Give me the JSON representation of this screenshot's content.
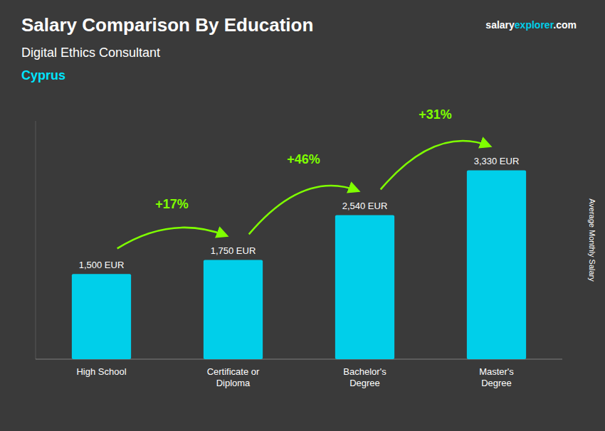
{
  "chart_data": {
    "type": "bar",
    "title": "Salary Comparison By Education",
    "subtitle": "Digital Ethics Consultant",
    "annotations": [
      {
        "text": "Cyprus",
        "color": "#00e5ff"
      }
    ],
    "source": [
      {
        "text": "salary"
      },
      {
        "text": "explorer",
        "color": "#00cfea"
      },
      {
        "text": ".com"
      }
    ],
    "y_label": "Average Monthly Salary",
    "categories": [
      "High School",
      "Certificate or\nDiploma",
      "Bachelor's\nDegree",
      "Master's\nDegree"
    ],
    "values": [
      1500,
      1750,
      2540,
      3330
    ],
    "value_labels": [
      "1,500 EUR",
      "1,750 EUR",
      "2,540 EUR",
      "3,330 EUR"
    ],
    "data_labels": true,
    "change_labels": [
      {
        "text": "+17%",
        "color": "#7fff00"
      },
      {
        "text": "+46%",
        "color": "#7fff00"
      },
      {
        "text": "+31%",
        "color": "#7fff00"
      }
    ],
    "color": "#00cfea",
    "ylim": [
      0,
      4200
    ],
    "grid": false,
    "tick_labels": "x"
  }
}
